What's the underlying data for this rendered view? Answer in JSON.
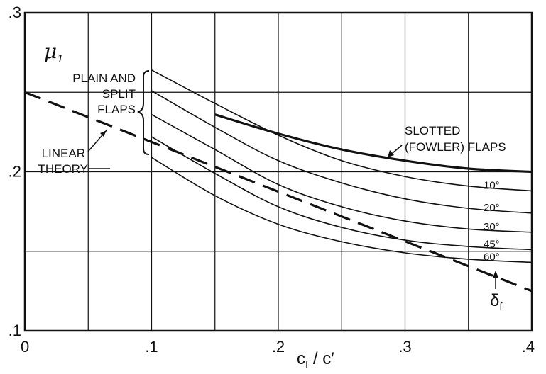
{
  "chart_data": {
    "type": "line",
    "xlim": [
      0,
      0.4
    ],
    "ylim": [
      0.1,
      0.3
    ],
    "grid": true,
    "x_ticks": [
      {
        "value": 0,
        "label": "0"
      },
      {
        "value": 0.1,
        "label": ".1"
      },
      {
        "value": 0.2,
        "label": ".2"
      },
      {
        "value": 0.3,
        "label": ".3"
      },
      {
        "value": 0.4,
        "label": ".4"
      }
    ],
    "y_ticks": [
      {
        "value": 0.1,
        "label": ".1"
      },
      {
        "value": 0.2,
        "label": ".2"
      },
      {
        "value": 0.3,
        "label": ".3"
      }
    ],
    "vertical_gridlines": [
      0.05,
      0.1,
      0.15,
      0.2,
      0.25,
      0.3,
      0.35
    ],
    "horizontal_gridlines": [
      0.15,
      0.2,
      0.25
    ],
    "xlabel": {
      "main": "c",
      "sub1": "f",
      "sep": " / ",
      "tail": "c′"
    },
    "ylabel": {
      "main": "μ",
      "sub": "1"
    },
    "series": [
      {
        "name": "10°",
        "kind": "plain-split",
        "points": [
          [
            0.1,
            0.264
          ],
          [
            0.15,
            0.243
          ],
          [
            0.2,
            0.223
          ],
          [
            0.25,
            0.207
          ],
          [
            0.3,
            0.197
          ],
          [
            0.35,
            0.191
          ],
          [
            0.4,
            0.188
          ]
        ]
      },
      {
        "name": "20°",
        "kind": "plain-split",
        "points": [
          [
            0.1,
            0.251
          ],
          [
            0.15,
            0.228
          ],
          [
            0.2,
            0.207
          ],
          [
            0.25,
            0.193
          ],
          [
            0.3,
            0.183
          ],
          [
            0.35,
            0.177
          ],
          [
            0.4,
            0.174
          ]
        ]
      },
      {
        "name": "30°",
        "kind": "plain-split",
        "points": [
          [
            0.1,
            0.236
          ],
          [
            0.15,
            0.214
          ],
          [
            0.2,
            0.192
          ],
          [
            0.25,
            0.178
          ],
          [
            0.3,
            0.169
          ],
          [
            0.35,
            0.164
          ],
          [
            0.4,
            0.162
          ]
        ]
      },
      {
        "name": "45°",
        "kind": "plain-split",
        "points": [
          [
            0.1,
            0.222
          ],
          [
            0.15,
            0.199
          ],
          [
            0.2,
            0.178
          ],
          [
            0.25,
            0.165
          ],
          [
            0.3,
            0.157
          ],
          [
            0.35,
            0.153
          ],
          [
            0.4,
            0.151
          ]
        ]
      },
      {
        "name": "60°",
        "kind": "plain-split",
        "points": [
          [
            0.1,
            0.209
          ],
          [
            0.15,
            0.185
          ],
          [
            0.2,
            0.167
          ],
          [
            0.25,
            0.156
          ],
          [
            0.3,
            0.149
          ],
          [
            0.35,
            0.145
          ],
          [
            0.4,
            0.143
          ]
        ]
      },
      {
        "name": "SLOTTED (FOWLER) FLAPS",
        "kind": "slotted",
        "points": [
          [
            0.15,
            0.236
          ],
          [
            0.2,
            0.224
          ],
          [
            0.25,
            0.214
          ],
          [
            0.3,
            0.207
          ],
          [
            0.35,
            0.202
          ],
          [
            0.4,
            0.2
          ]
        ]
      },
      {
        "name": "LINEAR THEORY",
        "kind": "linear",
        "points": [
          [
            0,
            0.25
          ],
          [
            0.4,
            0.125
          ]
        ]
      }
    ],
    "annotations": {
      "plain_split": [
        "PLAIN AND",
        "SPLIT",
        "FLAPS"
      ],
      "linear": [
        "LINEAR",
        "THEORY"
      ],
      "slotted": [
        "SLOTTED",
        "(FOWLER) FLAPS"
      ],
      "delta": {
        "main": "δ",
        "sub": "f"
      }
    }
  }
}
